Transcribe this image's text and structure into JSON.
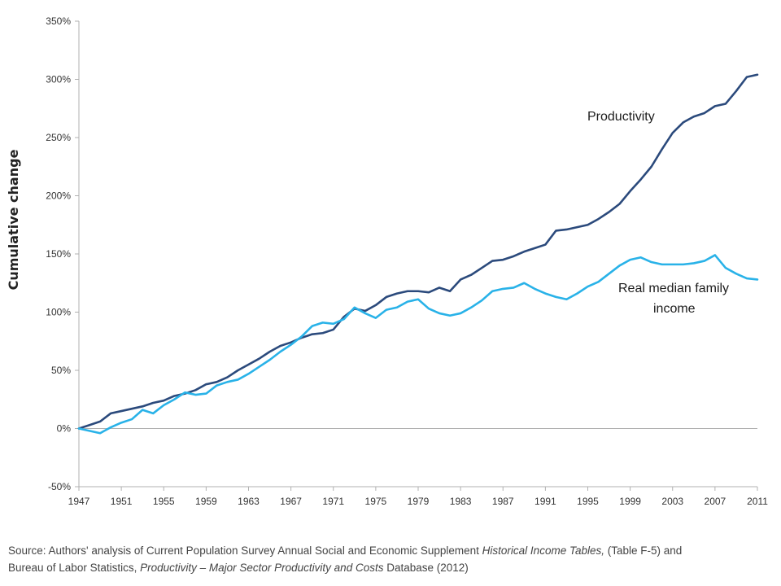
{
  "chart_data": {
    "type": "line",
    "ylabel": "Cumulative change",
    "xlabel": "",
    "title": "",
    "ylim": [
      -50,
      350
    ],
    "y_ticks": [
      -50,
      0,
      50,
      100,
      150,
      200,
      250,
      300,
      350
    ],
    "y_tick_labels": [
      "-50%",
      "0%",
      "50%",
      "100%",
      "150%",
      "200%",
      "250%",
      "300%",
      "350%"
    ],
    "xlim": [
      1947,
      2011
    ],
    "x_ticks": [
      1947,
      1951,
      1955,
      1959,
      1963,
      1967,
      1971,
      1975,
      1979,
      1983,
      1987,
      1991,
      1995,
      1999,
      2003,
      2007,
      2011
    ],
    "x_tick_labels": [
      "1947",
      "1951",
      "1955",
      "1959",
      "1963",
      "1967",
      "1971",
      "1975",
      "1979",
      "1983",
      "1987",
      "1991",
      "1995",
      "1999",
      "2003",
      "2007",
      "2011"
    ],
    "grid": false,
    "x": [
      1947,
      1948,
      1949,
      1950,
      1951,
      1952,
      1953,
      1954,
      1955,
      1956,
      1957,
      1958,
      1959,
      1960,
      1961,
      1962,
      1963,
      1964,
      1965,
      1966,
      1967,
      1968,
      1969,
      1970,
      1971,
      1972,
      1973,
      1974,
      1975,
      1976,
      1977,
      1978,
      1979,
      1980,
      1981,
      1982,
      1983,
      1984,
      1985,
      1986,
      1987,
      1988,
      1989,
      1990,
      1991,
      1992,
      1993,
      1994,
      1995,
      1996,
      1997,
      1998,
      1999,
      2000,
      2001,
      2002,
      2003,
      2004,
      2005,
      2006,
      2007,
      2008,
      2009,
      2010,
      2011
    ],
    "series": [
      {
        "name": "Productivity",
        "color": "#2b4a7c",
        "values": [
          0,
          3,
          6,
          13,
          15,
          17,
          19,
          22,
          24,
          28,
          30,
          33,
          38,
          40,
          44,
          50,
          55,
          60,
          66,
          71,
          74,
          78,
          81,
          82,
          85,
          96,
          103,
          101,
          106,
          113,
          116,
          118,
          118,
          117,
          121,
          118,
          128,
          132,
          138,
          144,
          145,
          148,
          152,
          155,
          158,
          170,
          171,
          173,
          175,
          180,
          186,
          193,
          204,
          214,
          225,
          240,
          254,
          263,
          268,
          271,
          277,
          279,
          290,
          302,
          304
        ]
      },
      {
        "name": "Real median family income",
        "color": "#29b2e8",
        "values": [
          0,
          -2,
          -4,
          1,
          5,
          8,
          16,
          13,
          20,
          25,
          31,
          29,
          30,
          37,
          40,
          42,
          47,
          53,
          59,
          66,
          72,
          79,
          88,
          91,
          90,
          94,
          104,
          99,
          95,
          102,
          104,
          109,
          111,
          103,
          99,
          97,
          99,
          104,
          110,
          118,
          120,
          121,
          125,
          120,
          116,
          113,
          111,
          116,
          122,
          126,
          133,
          140,
          145,
          147,
          143,
          141,
          141,
          141,
          142,
          144,
          149,
          138,
          133,
          129,
          128
        ]
      }
    ],
    "annotations": [
      {
        "text": "Productivity",
        "series": "Productivity"
      },
      {
        "text": "Real median family",
        "series": "Real median family income"
      },
      {
        "text": "income",
        "series": "Real median family income"
      }
    ]
  },
  "source": {
    "line1_prefix": "Source:  Authors' analysis of Current Population Survey Annual Social and Economic Supplement ",
    "line1_italic": "Historical Income Tables,",
    "line1_suffix": " (Table F-5) and",
    "line2_prefix": "Bureau of Labor Statistics, ",
    "line2_italic": "Productivity – Major Sector Productivity and Costs",
    "line2_suffix": " Database (2012)"
  }
}
